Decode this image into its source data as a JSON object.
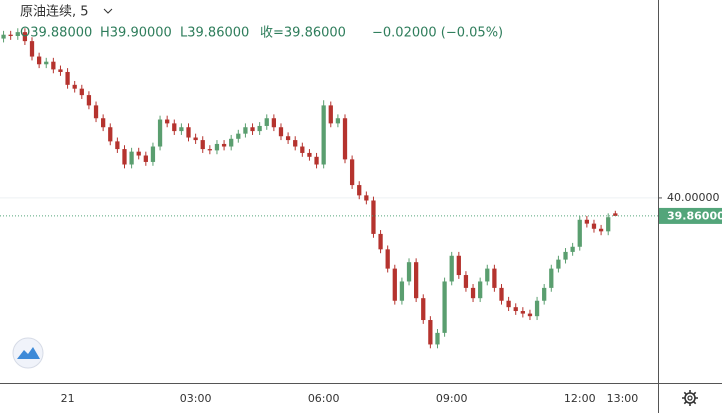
{
  "chart_data": {
    "type": "candlestick",
    "title": "原油连续, 5",
    "ohlc_header": [
      "O39.88000",
      "H39.90000",
      "L39.86000",
      "收=39.86000",
      "−0.02000 (−0.05%)"
    ],
    "colors": {
      "up": "#5a9e6f",
      "down": "#b5332e"
    },
    "candles": [
      [
        41.24,
        41.3,
        41.21,
        41.27
      ],
      [
        41.27,
        41.3,
        41.23,
        41.26
      ],
      [
        41.26,
        41.32,
        41.23,
        41.29
      ],
      [
        41.29,
        41.32,
        41.19,
        41.22
      ],
      [
        41.22,
        41.25,
        41.07,
        41.1
      ],
      [
        41.1,
        41.13,
        41.01,
        41.04
      ],
      [
        41.04,
        41.09,
        41.01,
        41.06
      ],
      [
        41.06,
        41.09,
        40.97,
        41.0
      ],
      [
        41.0,
        41.03,
        40.95,
        40.98
      ],
      [
        40.98,
        41.01,
        40.85,
        40.88
      ],
      [
        40.88,
        40.91,
        40.82,
        40.85
      ],
      [
        40.85,
        40.88,
        40.77,
        40.8
      ],
      [
        40.8,
        40.83,
        40.69,
        40.72
      ],
      [
        40.72,
        40.75,
        40.59,
        40.62
      ],
      [
        40.62,
        40.65,
        40.52,
        40.55
      ],
      [
        40.55,
        40.58,
        40.41,
        40.44
      ],
      [
        40.44,
        40.47,
        40.35,
        40.38
      ],
      [
        40.38,
        40.41,
        40.23,
        40.26
      ],
      [
        40.26,
        40.39,
        40.23,
        40.36
      ],
      [
        40.36,
        40.39,
        40.3,
        40.33
      ],
      [
        40.33,
        40.36,
        40.25,
        40.28
      ],
      [
        40.28,
        40.43,
        40.25,
        40.4
      ],
      [
        40.4,
        40.64,
        40.37,
        40.61
      ],
      [
        40.61,
        40.64,
        40.55,
        40.58
      ],
      [
        40.58,
        40.61,
        40.49,
        40.52
      ],
      [
        40.52,
        40.58,
        40.49,
        40.55
      ],
      [
        40.55,
        40.58,
        40.44,
        40.47
      ],
      [
        40.47,
        40.5,
        40.42,
        40.45
      ],
      [
        40.45,
        40.48,
        40.35,
        40.38
      ],
      [
        40.38,
        40.41,
        40.34,
        40.37
      ],
      [
        40.37,
        40.45,
        40.34,
        40.42
      ],
      [
        40.42,
        40.45,
        40.37,
        40.4
      ],
      [
        40.4,
        40.49,
        40.37,
        40.46
      ],
      [
        40.46,
        40.53,
        40.43,
        40.5
      ],
      [
        40.5,
        40.58,
        40.47,
        40.55
      ],
      [
        40.55,
        40.58,
        40.49,
        40.52
      ],
      [
        40.52,
        40.59,
        40.49,
        40.56
      ],
      [
        40.56,
        40.65,
        40.53,
        40.62
      ],
      [
        40.62,
        40.65,
        40.52,
        40.55
      ],
      [
        40.55,
        40.58,
        40.45,
        40.48
      ],
      [
        40.48,
        40.51,
        40.42,
        40.45
      ],
      [
        40.45,
        40.48,
        40.37,
        40.4
      ],
      [
        40.4,
        40.43,
        40.32,
        40.35
      ],
      [
        40.35,
        40.38,
        40.29,
        40.32
      ],
      [
        40.32,
        40.35,
        40.23,
        40.26
      ],
      [
        40.26,
        40.76,
        40.23,
        40.72
      ],
      [
        40.72,
        40.75,
        40.55,
        40.58
      ],
      [
        40.58,
        40.65,
        40.55,
        40.62
      ],
      [
        40.62,
        40.65,
        40.27,
        40.3
      ],
      [
        40.3,
        40.33,
        40.07,
        40.1
      ],
      [
        40.1,
        40.13,
        39.99,
        40.02
      ],
      [
        40.02,
        40.05,
        39.95,
        39.98
      ],
      [
        39.98,
        40.01,
        39.69,
        39.72
      ],
      [
        39.72,
        39.75,
        39.57,
        39.6
      ],
      [
        39.6,
        39.63,
        39.42,
        39.45
      ],
      [
        39.45,
        39.48,
        39.17,
        39.2
      ],
      [
        39.2,
        39.38,
        39.17,
        39.35
      ],
      [
        39.35,
        39.53,
        39.32,
        39.5
      ],
      [
        39.5,
        39.53,
        39.19,
        39.22
      ],
      [
        39.22,
        39.25,
        39.02,
        39.05
      ],
      [
        39.05,
        39.08,
        38.83,
        38.86
      ],
      [
        38.86,
        38.98,
        38.83,
        38.95
      ],
      [
        38.95,
        39.38,
        38.92,
        39.35
      ],
      [
        39.35,
        39.58,
        39.32,
        39.55
      ],
      [
        39.55,
        39.58,
        39.37,
        39.4
      ],
      [
        39.4,
        39.43,
        39.27,
        39.3
      ],
      [
        39.3,
        39.33,
        39.19,
        39.22
      ],
      [
        39.22,
        39.38,
        39.19,
        39.35
      ],
      [
        39.35,
        39.48,
        39.32,
        39.45
      ],
      [
        39.45,
        39.48,
        39.27,
        39.3
      ],
      [
        39.3,
        39.33,
        39.17,
        39.2
      ],
      [
        39.2,
        39.23,
        39.12,
        39.15
      ],
      [
        39.15,
        39.18,
        39.09,
        39.12
      ],
      [
        39.12,
        39.15,
        39.07,
        39.1
      ],
      [
        39.1,
        39.13,
        39.05,
        39.08
      ],
      [
        39.08,
        39.23,
        39.05,
        39.2
      ],
      [
        39.2,
        39.33,
        39.17,
        39.3
      ],
      [
        39.3,
        39.48,
        39.27,
        39.45
      ],
      [
        39.45,
        39.55,
        39.42,
        39.52
      ],
      [
        39.52,
        39.61,
        39.49,
        39.58
      ],
      [
        39.58,
        39.65,
        39.55,
        39.62
      ],
      [
        39.62,
        39.86,
        39.59,
        39.83
      ],
      [
        39.83,
        39.86,
        39.77,
        39.8
      ],
      [
        39.8,
        39.83,
        39.73,
        39.76
      ],
      [
        39.76,
        39.79,
        39.71,
        39.74
      ],
      [
        39.74,
        39.88,
        39.71,
        39.85
      ],
      [
        39.88,
        39.9,
        39.86,
        39.86
      ]
    ],
    "xlim": [
      -0.5,
      92
    ],
    "xticks": [
      {
        "value": 9,
        "label": "21"
      },
      {
        "value": 27,
        "label": "03:00"
      },
      {
        "value": 45,
        "label": "06:00"
      },
      {
        "value": 63,
        "label": "09:00"
      },
      {
        "value": 81,
        "label": "12:00"
      },
      {
        "value": 87,
        "label": "13:00"
      }
    ],
    "ylim": [
      38.56,
      41.54
    ],
    "yticks": [
      {
        "value": 40,
        "label": "40.00000"
      }
    ],
    "last_price": {
      "value": 39.86,
      "label": "39.86000",
      "color": "#53a57a"
    },
    "grid": true
  }
}
